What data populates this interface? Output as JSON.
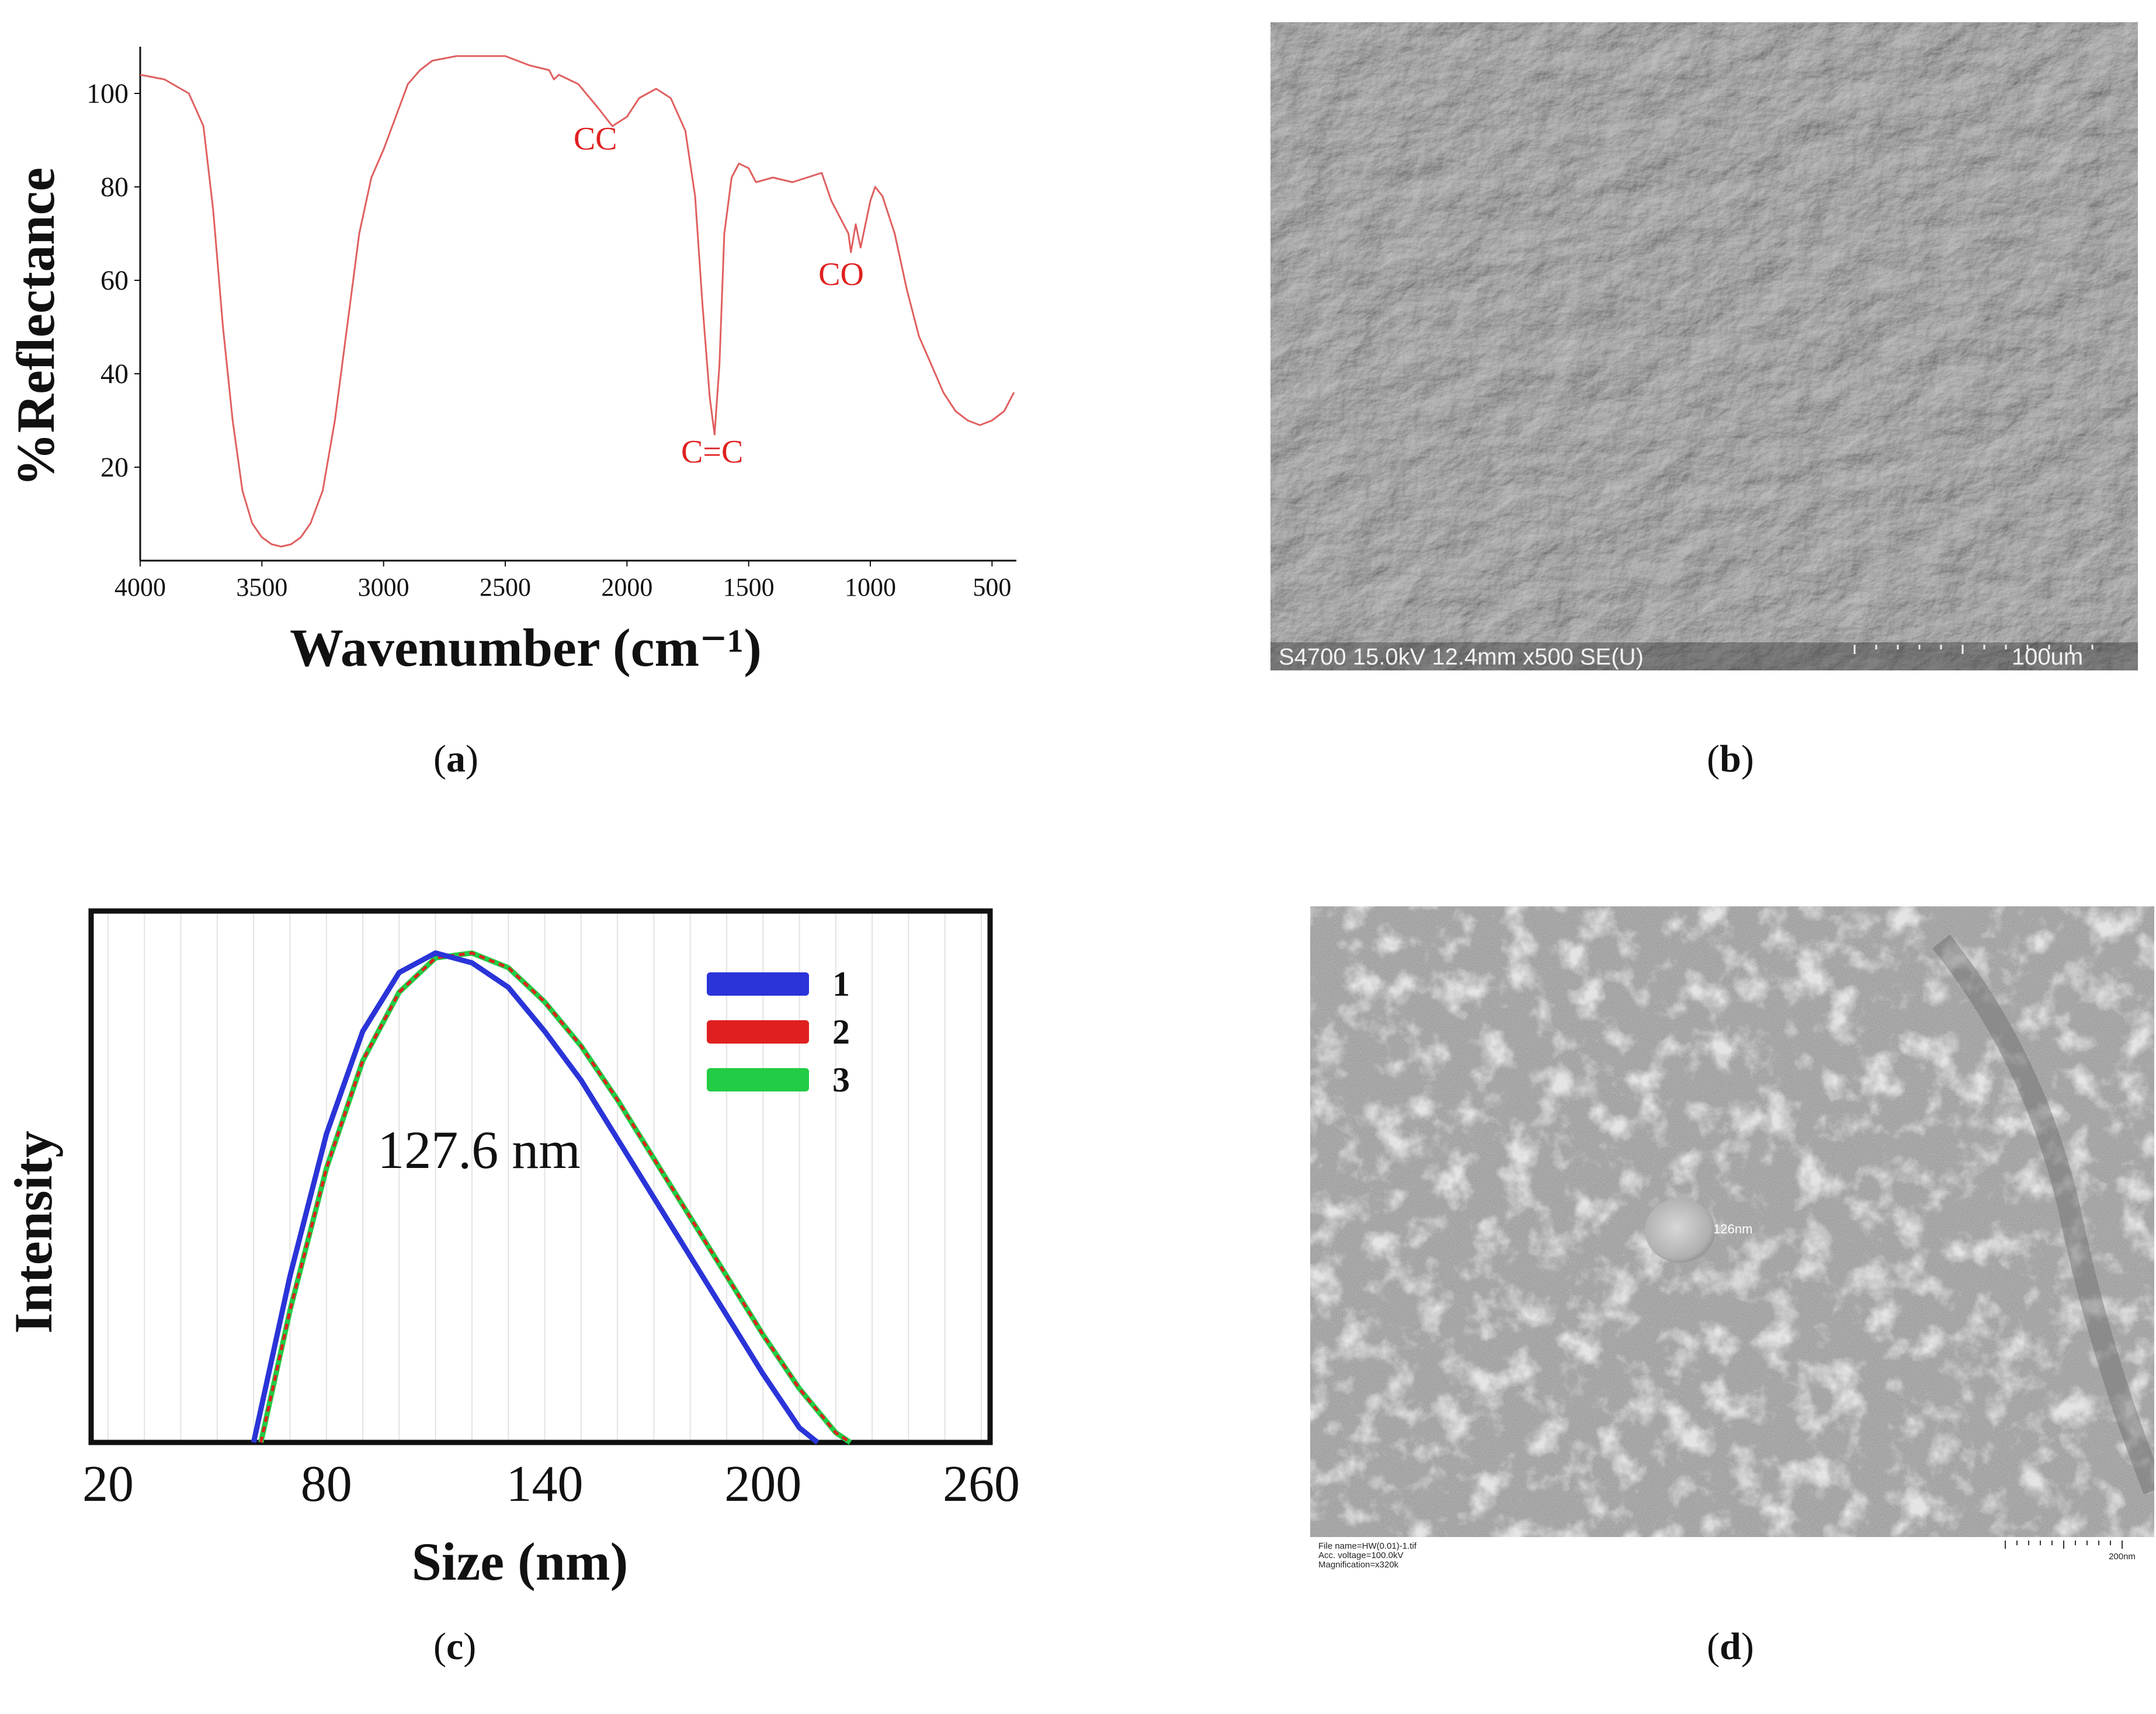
{
  "chart_data": [
    {
      "panel": "a",
      "type": "line",
      "title": "",
      "xlabel": "Wavenumber (cm⁻¹)",
      "ylabel": "%Reflectance",
      "xlim": [
        4000,
        400
      ],
      "ylim": [
        0,
        110
      ],
      "x_reversed": true,
      "grid": false,
      "xticks": [
        "4000",
        "3500",
        "3000",
        "2500",
        "2000",
        "1500",
        "1000",
        "500"
      ],
      "yticks": [
        "20",
        "40",
        "60",
        "80",
        "100"
      ],
      "line_color": "#e06060",
      "series": [
        {
          "x": [
            4000,
            3900,
            3800,
            3740,
            3700,
            3660,
            3620,
            3580,
            3540,
            3500,
            3460,
            3420,
            3380,
            3340,
            3300,
            3250,
            3200,
            3150,
            3100,
            3050,
            3000,
            2950,
            2900,
            2850,
            2800,
            2700,
            2600,
            2500,
            2400,
            2320,
            2300,
            2280,
            2200,
            2120,
            2060,
            2000,
            1950,
            1880,
            1820,
            1760,
            1720,
            1690,
            1660,
            1640,
            1620,
            1600,
            1570,
            1540,
            1500,
            1470,
            1400,
            1320,
            1260,
            1200,
            1160,
            1120,
            1090,
            1080,
            1060,
            1040,
            1000,
            980,
            950,
            900,
            850,
            800,
            750,
            700,
            650,
            600,
            550,
            500,
            450,
            410
          ],
          "y": [
            104,
            103,
            100,
            93,
            75,
            50,
            30,
            15,
            8,
            5,
            3.5,
            3,
            3.5,
            5,
            8,
            15,
            30,
            50,
            70,
            82,
            88,
            95,
            102,
            105,
            107,
            108,
            108,
            108,
            106,
            105,
            103,
            104,
            102,
            97,
            93,
            95,
            99,
            101,
            99,
            92,
            78,
            55,
            35,
            27,
            42,
            70,
            82,
            85,
            84,
            81,
            82,
            81,
            82,
            83,
            77,
            73,
            70,
            66,
            72,
            67,
            77,
            80,
            78,
            70,
            58,
            48,
            42,
            36,
            32,
            30,
            29,
            30,
            32,
            36
          ]
        }
      ],
      "annotations": [
        {
          "text": "CC",
          "x": 2130,
          "y": 88
        },
        {
          "text": "C=C",
          "x": 1650,
          "y": 21
        },
        {
          "text": "CO",
          "x": 1120,
          "y": 59
        }
      ]
    },
    {
      "panel": "c",
      "type": "line",
      "title": "",
      "xlabel": "Size (nm)",
      "ylabel": "Intensity",
      "xlim": [
        20,
        260
      ],
      "ylim": [
        0,
        1.05
      ],
      "grid": true,
      "xticks": [
        "20",
        "80",
        "140",
        "200",
        "260"
      ],
      "legend_position": "top-right",
      "annotation": "127.6 nm",
      "series": [
        {
          "name": "1",
          "color": "#2a34d8",
          "x": [
            60,
            70,
            80,
            90,
            100,
            110,
            120,
            130,
            140,
            150,
            160,
            170,
            180,
            190,
            200,
            210,
            215
          ],
          "y": [
            0,
            0.34,
            0.63,
            0.84,
            0.96,
            1.0,
            0.98,
            0.93,
            0.84,
            0.74,
            0.62,
            0.5,
            0.38,
            0.26,
            0.14,
            0.03,
            0
          ]
        },
        {
          "name": "2",
          "color": "#e02020",
          "x": [
            62,
            70,
            80,
            90,
            100,
            110,
            120,
            130,
            140,
            150,
            160,
            170,
            180,
            190,
            200,
            210,
            220,
            224
          ],
          "y": [
            0,
            0.27,
            0.56,
            0.78,
            0.92,
            0.99,
            1.0,
            0.97,
            0.9,
            0.81,
            0.7,
            0.58,
            0.46,
            0.34,
            0.22,
            0.11,
            0.02,
            0
          ]
        },
        {
          "name": "3",
          "color": "#22cc44",
          "x": [
            62,
            70,
            80,
            90,
            100,
            110,
            120,
            130,
            140,
            150,
            160,
            170,
            180,
            190,
            200,
            210,
            220,
            224
          ],
          "y": [
            0,
            0.27,
            0.56,
            0.78,
            0.92,
            0.99,
            1.0,
            0.97,
            0.9,
            0.81,
            0.7,
            0.58,
            0.46,
            0.34,
            0.22,
            0.11,
            0.02,
            0
          ]
        }
      ]
    }
  ],
  "panels": {
    "a": {
      "label": "a"
    },
    "b": {
      "label": "b",
      "sem_info": "S4700 15.0kV 12.4mm x500 SE(U)",
      "scale_label": "100um"
    },
    "c": {
      "label": "c"
    },
    "d": {
      "label": "d",
      "particle_label": "126nm",
      "file_line": "File name=HW(0.01)-1.tif",
      "voltage_line": "Acc. voltage=100.0kV",
      "mag_line": "Magnification=x320k",
      "scale_label": "200nm"
    }
  },
  "colors": {
    "axis": "#111111",
    "ftir_line": "#e06060",
    "annotation": "#e02020",
    "sem_bg": "#8a8a8a",
    "tem_bg": "#8f8f8f"
  }
}
